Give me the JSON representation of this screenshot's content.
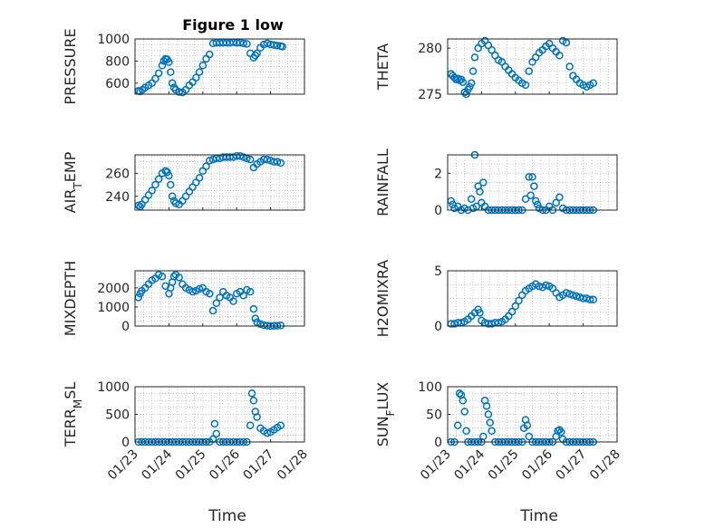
{
  "figure": {
    "title": "Figure 1 low",
    "xlabel": "Time",
    "marker_color": "#0072BD",
    "axis_color": "#262626",
    "grid_color": "#b0b0b0"
  },
  "chart_data": [
    {
      "type": "scatter",
      "name": "pressure",
      "ylabel": "PRESSURE",
      "xticks": [
        0,
        1,
        2,
        3,
        4,
        5
      ],
      "xticklabels": [
        "01/23",
        "01/24",
        "01/25",
        "01/26",
        "01/27",
        "01/28"
      ],
      "xlim": [
        0,
        5
      ],
      "ylim": [
        500,
        1000
      ],
      "yticks": [
        600,
        800,
        1000
      ],
      "grid": "on",
      "x": [
        0.1,
        0.15,
        0.22,
        0.3,
        0.4,
        0.5,
        0.6,
        0.7,
        0.8,
        0.85,
        0.9,
        0.95,
        1.0,
        1.05,
        1.1,
        1.15,
        1.2,
        1.3,
        1.4,
        1.5,
        1.6,
        1.7,
        1.8,
        1.9,
        2.0,
        2.1,
        2.2,
        2.3,
        2.4,
        2.5,
        2.6,
        2.7,
        2.8,
        2.9,
        3.0,
        3.1,
        3.2,
        3.3,
        3.4,
        3.5,
        3.55,
        3.6,
        3.7,
        3.8,
        3.9,
        4.0,
        4.1,
        4.2,
        4.3,
        4.35
      ],
      "y": [
        530,
        525,
        540,
        560,
        580,
        600,
        640,
        690,
        760,
        800,
        820,
        815,
        790,
        700,
        600,
        560,
        540,
        520,
        515,
        540,
        580,
        610,
        650,
        700,
        760,
        820,
        860,
        960,
        965,
        965,
        965,
        965,
        965,
        970,
        965,
        965,
        960,
        955,
        870,
        830,
        850,
        870,
        920,
        950,
        960,
        950,
        945,
        940,
        935,
        930
      ]
    },
    {
      "type": "scatter",
      "name": "theta",
      "ylabel": "THETA",
      "xticks": [
        0,
        1,
        2,
        3,
        4,
        5
      ],
      "xticklabels": [
        "01/23",
        "01/24",
        "01/25",
        "01/26",
        "01/27",
        "01/28"
      ],
      "xlim": [
        0,
        5
      ],
      "ylim": [
        275,
        281
      ],
      "yticks": [
        275,
        280
      ],
      "grid": "on",
      "x": [
        0.1,
        0.15,
        0.2,
        0.25,
        0.3,
        0.35,
        0.4,
        0.45,
        0.5,
        0.55,
        0.6,
        0.65,
        0.7,
        0.75,
        0.8,
        0.9,
        1.0,
        1.1,
        1.2,
        1.3,
        1.4,
        1.5,
        1.6,
        1.7,
        1.8,
        1.9,
        2.0,
        2.1,
        2.2,
        2.3,
        2.4,
        2.5,
        2.6,
        2.7,
        2.8,
        2.9,
        3.0,
        3.1,
        3.2,
        3.3,
        3.4,
        3.5,
        3.6,
        3.7,
        3.8,
        3.9,
        4.0,
        4.1,
        4.2,
        4.3
      ],
      "y": [
        277.2,
        277.0,
        276.8,
        276.6,
        276.7,
        276.5,
        276.6,
        276.3,
        275.2,
        275.0,
        275.5,
        275.8,
        276.2,
        277.5,
        279.0,
        280.0,
        280.5,
        280.8,
        280.3,
        279.8,
        279.2,
        278.7,
        278.5,
        278.0,
        277.6,
        277.2,
        276.8,
        276.5,
        276.2,
        276.0,
        277.5,
        278.5,
        279.0,
        279.5,
        279.8,
        280.2,
        280.5,
        280.0,
        279.6,
        279.2,
        280.8,
        280.6,
        278.0,
        277.0,
        276.6,
        276.2,
        276.0,
        275.8,
        276.0,
        276.2
      ]
    },
    {
      "type": "scatter",
      "name": "air_temp",
      "ylabel": "AIR_TEMP",
      "xticks": [
        0,
        1,
        2,
        3,
        4,
        5
      ],
      "xticklabels": [
        "01/23",
        "01/24",
        "01/25",
        "01/26",
        "01/27",
        "01/28"
      ],
      "xlim": [
        0,
        5
      ],
      "ylim": [
        228,
        276
      ],
      "yticks": [
        240,
        260
      ],
      "grid": "on",
      "x": [
        0.1,
        0.15,
        0.2,
        0.3,
        0.4,
        0.5,
        0.6,
        0.7,
        0.8,
        0.9,
        0.95,
        1.0,
        1.05,
        1.1,
        1.15,
        1.2,
        1.3,
        1.4,
        1.5,
        1.6,
        1.7,
        1.8,
        1.9,
        2.0,
        2.1,
        2.2,
        2.3,
        2.4,
        2.5,
        2.6,
        2.7,
        2.8,
        2.9,
        3.0,
        3.1,
        3.2,
        3.3,
        3.4,
        3.5,
        3.6,
        3.7,
        3.8,
        3.9,
        4.0,
        4.1,
        4.2,
        4.3
      ],
      "y": [
        232,
        231,
        233,
        237,
        241,
        245,
        250,
        255,
        260,
        262,
        261,
        258,
        250,
        240,
        236,
        234,
        233,
        236,
        240,
        244,
        248,
        252,
        256,
        262,
        266,
        271,
        272,
        273,
        273,
        274,
        274,
        274,
        274,
        275,
        275,
        274,
        273,
        272,
        265,
        268,
        270,
        272,
        272,
        271,
        270,
        270,
        269
      ]
    },
    {
      "type": "scatter",
      "name": "rainfall",
      "ylabel": "RAINFALL",
      "xticks": [
        0,
        1,
        2,
        3,
        4,
        5
      ],
      "xticklabels": [
        "01/23",
        "01/24",
        "01/25",
        "01/26",
        "01/27",
        "01/28"
      ],
      "xlim": [
        0,
        5
      ],
      "ylim": [
        0,
        3
      ],
      "yticks": [
        0,
        2
      ],
      "grid": "on",
      "x": [
        0.1,
        0.15,
        0.2,
        0.3,
        0.4,
        0.5,
        0.6,
        0.7,
        0.75,
        0.8,
        0.85,
        0.9,
        0.95,
        1.0,
        1.05,
        1.1,
        1.2,
        1.3,
        1.4,
        1.5,
        1.6,
        1.7,
        1.8,
        1.9,
        2.0,
        2.1,
        2.2,
        2.3,
        2.4,
        2.45,
        2.5,
        2.55,
        2.6,
        2.65,
        2.7,
        2.8,
        2.9,
        3.0,
        3.1,
        3.2,
        3.3,
        3.4,
        3.5,
        3.6,
        3.7,
        3.8,
        3.9,
        4.0,
        4.1,
        4.2,
        4.3
      ],
      "y": [
        0.5,
        0.3,
        0.1,
        0.2,
        0,
        0.1,
        0,
        0.6,
        0.1,
        3.0,
        0.2,
        1.3,
        1.0,
        0.4,
        1.5,
        0.2,
        0,
        0,
        0,
        0,
        0,
        0,
        0,
        0,
        0,
        0,
        0,
        0.6,
        1.8,
        0.8,
        1.8,
        1.3,
        0.5,
        0.3,
        0.1,
        0,
        0,
        0.2,
        0,
        0.4,
        0.7,
        0.1,
        0,
        0,
        0,
        0,
        0,
        0,
        0,
        0,
        0
      ]
    },
    {
      "type": "scatter",
      "name": "mixdepth",
      "ylabel": "MIXDEPTH",
      "xticks": [
        0,
        1,
        2,
        3,
        4,
        5
      ],
      "xticklabels": [
        "01/23",
        "01/24",
        "01/25",
        "01/26",
        "01/27",
        "01/28"
      ],
      "xlim": [
        0,
        5
      ],
      "ylim": [
        0,
        2900
      ],
      "yticks": [
        0,
        1000,
        2000
      ],
      "grid": "on",
      "x": [
        0.1,
        0.15,
        0.2,
        0.3,
        0.4,
        0.5,
        0.6,
        0.7,
        0.8,
        0.9,
        1.0,
        1.05,
        1.1,
        1.15,
        1.2,
        1.3,
        1.4,
        1.5,
        1.6,
        1.7,
        1.8,
        1.9,
        2.0,
        2.1,
        2.2,
        2.3,
        2.4,
        2.5,
        2.6,
        2.7,
        2.8,
        2.9,
        3.0,
        3.1,
        3.2,
        3.3,
        3.4,
        3.5,
        3.55,
        3.6,
        3.7,
        3.8,
        3.9,
        4.0,
        4.1,
        4.2,
        4.3
      ],
      "y": [
        1500,
        1700,
        1850,
        2000,
        2200,
        2400,
        2500,
        2700,
        2600,
        2100,
        1700,
        2000,
        2300,
        2600,
        2700,
        2550,
        2200,
        2000,
        1900,
        1800,
        1850,
        1950,
        2000,
        1800,
        1700,
        800,
        1200,
        1500,
        1800,
        1600,
        1500,
        1300,
        1700,
        1800,
        1600,
        1900,
        1800,
        900,
        400,
        200,
        100,
        50,
        20,
        0,
        10,
        20,
        30
      ]
    },
    {
      "type": "scatter",
      "name": "h2omixra",
      "ylabel": "H2OMIXRA",
      "xticks": [
        0,
        1,
        2,
        3,
        4,
        5
      ],
      "xticklabels": [
        "01/23",
        "01/24",
        "01/25",
        "01/26",
        "01/27",
        "01/28"
      ],
      "xlim": [
        0,
        5
      ],
      "ylim": [
        0,
        5
      ],
      "yticks": [
        0,
        5
      ],
      "grid": "on",
      "x": [
        0.1,
        0.2,
        0.3,
        0.4,
        0.5,
        0.6,
        0.7,
        0.8,
        0.9,
        0.95,
        1.0,
        1.1,
        1.2,
        1.3,
        1.4,
        1.5,
        1.6,
        1.7,
        1.8,
        1.9,
        2.0,
        2.1,
        2.2,
        2.3,
        2.4,
        2.5,
        2.6,
        2.7,
        2.8,
        2.9,
        3.0,
        3.1,
        3.2,
        3.3,
        3.4,
        3.5,
        3.6,
        3.7,
        3.8,
        3.9,
        4.0,
        4.1,
        4.2,
        4.3
      ],
      "y": [
        0.2,
        0.2,
        0.3,
        0.3,
        0.4,
        0.6,
        0.9,
        1.2,
        1.5,
        1.2,
        0.5,
        0.3,
        0.2,
        0.2,
        0.3,
        0.3,
        0.4,
        0.6,
        0.9,
        1.3,
        1.8,
        2.3,
        2.8,
        3.2,
        3.4,
        3.6,
        3.8,
        3.6,
        3.5,
        3.7,
        3.6,
        3.4,
        3.0,
        2.6,
        2.8,
        3.0,
        2.9,
        2.8,
        2.7,
        2.6,
        2.5,
        2.5,
        2.4,
        2.4
      ]
    },
    {
      "type": "scatter",
      "name": "terr_msl",
      "ylabel": "TERR_MSL",
      "xticks": [
        0,
        1,
        2,
        3,
        4,
        5
      ],
      "xticklabels": [
        "01/23",
        "01/24",
        "01/25",
        "01/26",
        "01/27",
        "01/28"
      ],
      "xlim": [
        0,
        5
      ],
      "ylim": [
        0,
        1000
      ],
      "yticks": [
        0,
        500,
        1000
      ],
      "grid": "on",
      "x": [
        0.1,
        0.2,
        0.3,
        0.4,
        0.5,
        0.6,
        0.7,
        0.8,
        0.9,
        1.0,
        1.1,
        1.2,
        1.3,
        1.4,
        1.5,
        1.6,
        1.7,
        1.8,
        1.9,
        2.0,
        2.1,
        2.2,
        2.3,
        2.35,
        2.4,
        2.5,
        2.6,
        2.7,
        2.8,
        2.9,
        3.0,
        3.1,
        3.2,
        3.3,
        3.4,
        3.45,
        3.5,
        3.55,
        3.6,
        3.7,
        3.8,
        3.9,
        4.0,
        4.1,
        4.2,
        4.3
      ],
      "y": [
        0,
        0,
        0,
        0,
        0,
        0,
        0,
        0,
        0,
        0,
        0,
        0,
        0,
        0,
        0,
        0,
        0,
        0,
        0,
        0,
        0,
        0,
        50,
        330,
        150,
        0,
        0,
        0,
        0,
        0,
        0,
        0,
        0,
        0,
        300,
        880,
        750,
        550,
        450,
        250,
        200,
        160,
        180,
        220,
        260,
        300
      ]
    },
    {
      "type": "scatter",
      "name": "sun_flux",
      "ylabel": "SUN_FLUX",
      "xticks": [
        0,
        1,
        2,
        3,
        4,
        5
      ],
      "xticklabels": [
        "01/23",
        "01/24",
        "01/25",
        "01/26",
        "01/27",
        "01/28"
      ],
      "xlim": [
        0,
        5
      ],
      "ylim": [
        0,
        100
      ],
      "yticks": [
        0,
        50,
        100
      ],
      "grid": "on",
      "x": [
        0.1,
        0.2,
        0.3,
        0.35,
        0.4,
        0.45,
        0.5,
        0.55,
        0.6,
        0.7,
        0.8,
        0.9,
        1.0,
        1.05,
        1.1,
        1.15,
        1.2,
        1.25,
        1.3,
        1.4,
        1.5,
        1.6,
        1.7,
        1.8,
        1.9,
        2.0,
        2.1,
        2.2,
        2.25,
        2.3,
        2.35,
        2.4,
        2.5,
        2.6,
        2.7,
        2.8,
        2.9,
        3.0,
        3.1,
        3.2,
        3.25,
        3.3,
        3.35,
        3.4,
        3.5,
        3.6,
        3.7,
        3.8,
        3.9,
        4.0,
        4.1,
        4.2,
        4.3
      ],
      "y": [
        0,
        0,
        30,
        88,
        85,
        75,
        55,
        20,
        0,
        0,
        0,
        0,
        0,
        10,
        75,
        65,
        50,
        35,
        20,
        0,
        0,
        0,
        0,
        0,
        0,
        0,
        0,
        0,
        25,
        40,
        30,
        10,
        0,
        0,
        0,
        0,
        0,
        0,
        0,
        10,
        20,
        22,
        18,
        5,
        0,
        0,
        0,
        0,
        0,
        0,
        0,
        0,
        0
      ]
    }
  ]
}
